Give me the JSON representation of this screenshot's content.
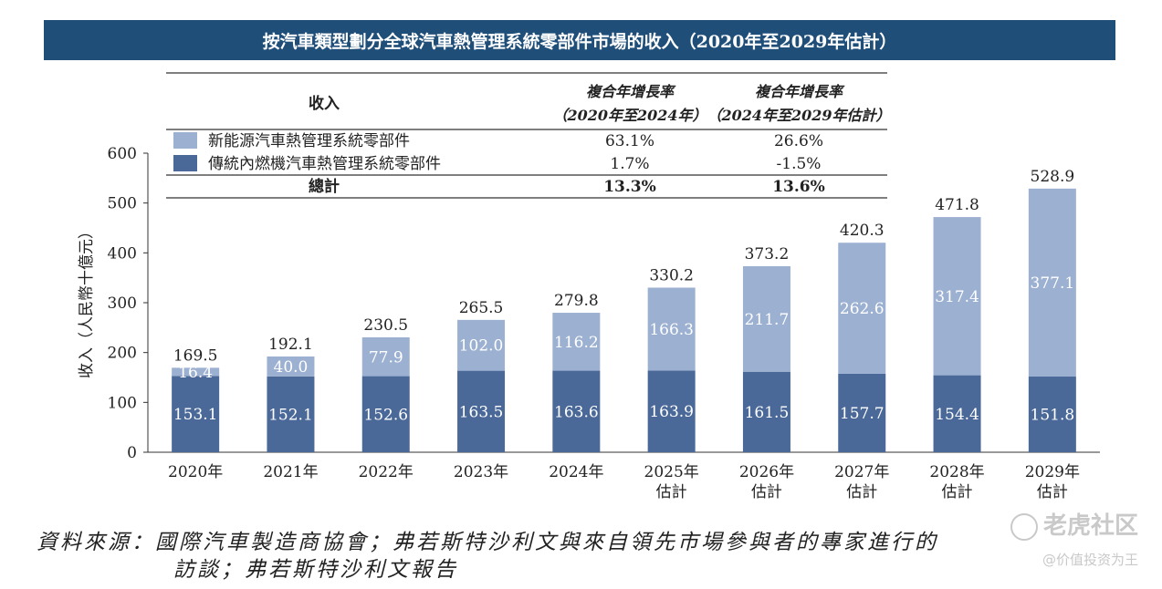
{
  "chart_data": {
    "type": "bar",
    "stacked": true,
    "title": "按汽車類型劃分全球汽車熱管理系統零部件市場的收入（2020年至2029年估計）",
    "ylabel": "收入（人民幣十億元）",
    "ylim": [
      0,
      600
    ],
    "yticks": [
      0,
      100,
      200,
      300,
      400,
      500,
      600
    ],
    "categories": [
      "2020年",
      "2021年",
      "2022年",
      "2023年",
      "2024年",
      "2025年\n估計",
      "2026年\n估計",
      "2027年\n估計",
      "2028年\n估計",
      "2029年\n估計"
    ],
    "series": [
      {
        "name": "傳統內燃機汽車熱管理系統零部件",
        "color": "#4a6898",
        "values": [
          153.1,
          152.1,
          152.6,
          163.5,
          163.6,
          163.9,
          161.5,
          157.7,
          154.4,
          151.8
        ]
      },
      {
        "name": "新能源汽車熱管理系統零部件",
        "color": "#9cb0d1",
        "values": [
          16.4,
          40.0,
          77.9,
          102.0,
          116.2,
          166.3,
          211.7,
          262.6,
          317.4,
          377.1
        ]
      }
    ],
    "totals": [
      169.5,
      192.1,
      230.5,
      265.5,
      279.8,
      330.2,
      373.2,
      420.3,
      471.8,
      528.9
    ],
    "cagr_table": {
      "header": {
        "col1": "收入",
        "col2_line1": "複合年增長率",
        "col2_line2": "（2020年至2024年）",
        "col3_line1": "複合年增長率",
        "col3_line2": "（2024年至2029年估計）"
      },
      "rows": [
        {
          "label": "新能源汽車熱管理系統零部件",
          "color": "#9cb0d1",
          "c1": "63.1%",
          "c2": "26.6%"
        },
        {
          "label": "傳統內燃機汽車熱管理系統零部件",
          "color": "#4a6898",
          "c1": "1.7%",
          "c2": "-1.5%"
        }
      ],
      "total_row": {
        "label": "總計",
        "c1": "13.3%",
        "c2": "13.6%"
      }
    },
    "grid": false,
    "legend": "top-left table"
  },
  "source": {
    "line1": "資料來源：國際汽車製造商協會；弗若斯特沙利文與來自領先市場參與者的專家進行的",
    "line2": "訪談；弗若斯特沙利文報告"
  },
  "watermark": {
    "main": "老虎社区",
    "sub": "@价值投资为王"
  }
}
